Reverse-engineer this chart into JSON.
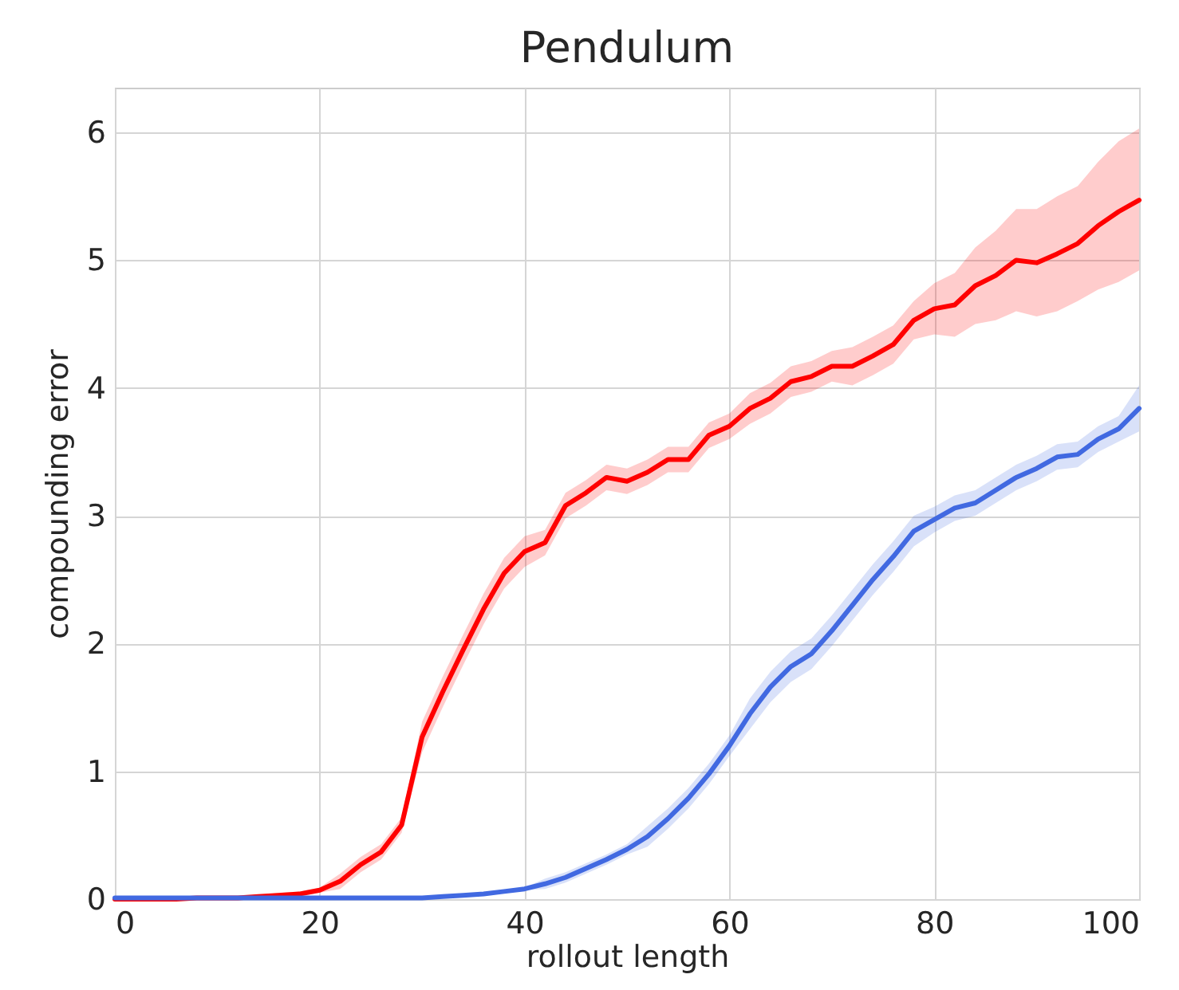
{
  "chart_data": {
    "type": "line",
    "title": "Pendulum",
    "xlabel": "rollout length",
    "ylabel": "compounding error",
    "x": [
      0,
      2,
      4,
      6,
      8,
      10,
      12,
      14,
      16,
      18,
      20,
      22,
      24,
      26,
      28,
      30,
      32,
      34,
      36,
      38,
      40,
      42,
      44,
      46,
      48,
      50,
      52,
      54,
      56,
      58,
      60,
      62,
      64,
      66,
      68,
      70,
      72,
      74,
      76,
      78,
      80,
      82,
      84,
      86,
      88,
      90,
      92,
      94,
      96,
      98,
      100
    ],
    "series": [
      {
        "color": "#ff0000",
        "values": [
          0,
          0,
          0,
          0,
          0.01,
          0.01,
          0.01,
          0.02,
          0.03,
          0.04,
          0.07,
          0.14,
          0.27,
          0.37,
          0.58,
          1.27,
          1.62,
          1.95,
          2.27,
          2.55,
          2.72,
          2.79,
          3.08,
          3.18,
          3.3,
          3.27,
          3.34,
          3.44,
          3.44,
          3.63,
          3.7,
          3.84,
          3.92,
          4.05,
          4.09,
          4.17,
          4.17,
          4.25,
          4.34,
          4.53,
          4.62,
          4.65,
          4.8,
          4.88,
          5.0,
          4.98,
          5.05,
          5.13,
          5.27,
          5.38,
          5.47
        ],
        "lower": [
          0,
          0,
          0,
          0,
          0,
          0,
          0,
          0.01,
          0.01,
          0.02,
          0.05,
          0.08,
          0.21,
          0.31,
          0.52,
          1.15,
          1.5,
          1.83,
          2.15,
          2.43,
          2.6,
          2.69,
          2.98,
          3.08,
          3.2,
          3.17,
          3.24,
          3.34,
          3.34,
          3.53,
          3.6,
          3.72,
          3.8,
          3.93,
          3.97,
          4.05,
          4.02,
          4.1,
          4.19,
          4.38,
          4.42,
          4.4,
          4.5,
          4.53,
          4.6,
          4.56,
          4.6,
          4.68,
          4.77,
          4.83,
          4.92
        ],
        "upper": [
          0.01,
          0.01,
          0.01,
          0.01,
          0.02,
          0.02,
          0.02,
          0.03,
          0.05,
          0.06,
          0.09,
          0.2,
          0.33,
          0.43,
          0.64,
          1.39,
          1.74,
          2.07,
          2.39,
          2.67,
          2.84,
          2.89,
          3.18,
          3.28,
          3.4,
          3.37,
          3.44,
          3.54,
          3.54,
          3.73,
          3.8,
          3.96,
          4.04,
          4.17,
          4.21,
          4.29,
          4.32,
          4.4,
          4.49,
          4.68,
          4.82,
          4.9,
          5.1,
          5.23,
          5.4,
          5.4,
          5.5,
          5.58,
          5.77,
          5.93,
          6.03
        ]
      },
      {
        "color": "#4169e1",
        "values": [
          0.01,
          0.01,
          0.01,
          0.01,
          0.01,
          0.01,
          0.01,
          0.01,
          0.01,
          0.01,
          0.01,
          0.01,
          0.01,
          0.01,
          0.01,
          0.01,
          0.02,
          0.03,
          0.04,
          0.06,
          0.08,
          0.12,
          0.17,
          0.24,
          0.31,
          0.39,
          0.49,
          0.63,
          0.79,
          0.98,
          1.2,
          1.45,
          1.66,
          1.82,
          1.92,
          2.1,
          2.3,
          2.5,
          2.68,
          2.88,
          2.97,
          3.06,
          3.1,
          3.2,
          3.3,
          3.37,
          3.46,
          3.48,
          3.6,
          3.68,
          3.84
        ],
        "lower": [
          0,
          0,
          0,
          0,
          0,
          0,
          0,
          0,
          0,
          0,
          0,
          0,
          0,
          0,
          0,
          0,
          0.01,
          0.02,
          0.03,
          0.05,
          0.07,
          0.08,
          0.13,
          0.2,
          0.27,
          0.35,
          0.41,
          0.55,
          0.71,
          0.9,
          1.12,
          1.33,
          1.54,
          1.7,
          1.8,
          1.98,
          2.18,
          2.38,
          2.56,
          2.76,
          2.87,
          2.96,
          3.0,
          3.1,
          3.2,
          3.27,
          3.36,
          3.38,
          3.5,
          3.58,
          3.66
        ],
        "upper": [
          0.02,
          0.02,
          0.02,
          0.02,
          0.02,
          0.02,
          0.02,
          0.02,
          0.02,
          0.02,
          0.02,
          0.02,
          0.02,
          0.02,
          0.02,
          0.02,
          0.03,
          0.04,
          0.05,
          0.07,
          0.09,
          0.16,
          0.21,
          0.28,
          0.35,
          0.43,
          0.57,
          0.71,
          0.87,
          1.06,
          1.28,
          1.57,
          1.78,
          1.94,
          2.04,
          2.22,
          2.42,
          2.62,
          2.8,
          3.0,
          3.07,
          3.16,
          3.2,
          3.3,
          3.4,
          3.47,
          3.56,
          3.58,
          3.7,
          3.78,
          4.02
        ]
      }
    ],
    "xlim": [
      0,
      100
    ],
    "xticks": [
      0,
      20,
      40,
      60,
      80,
      100
    ],
    "ylim": [
      0,
      6.35
    ],
    "yticks": [
      0,
      1,
      2,
      3,
      4,
      5,
      6
    ],
    "grid": true,
    "line_style": "solid"
  }
}
